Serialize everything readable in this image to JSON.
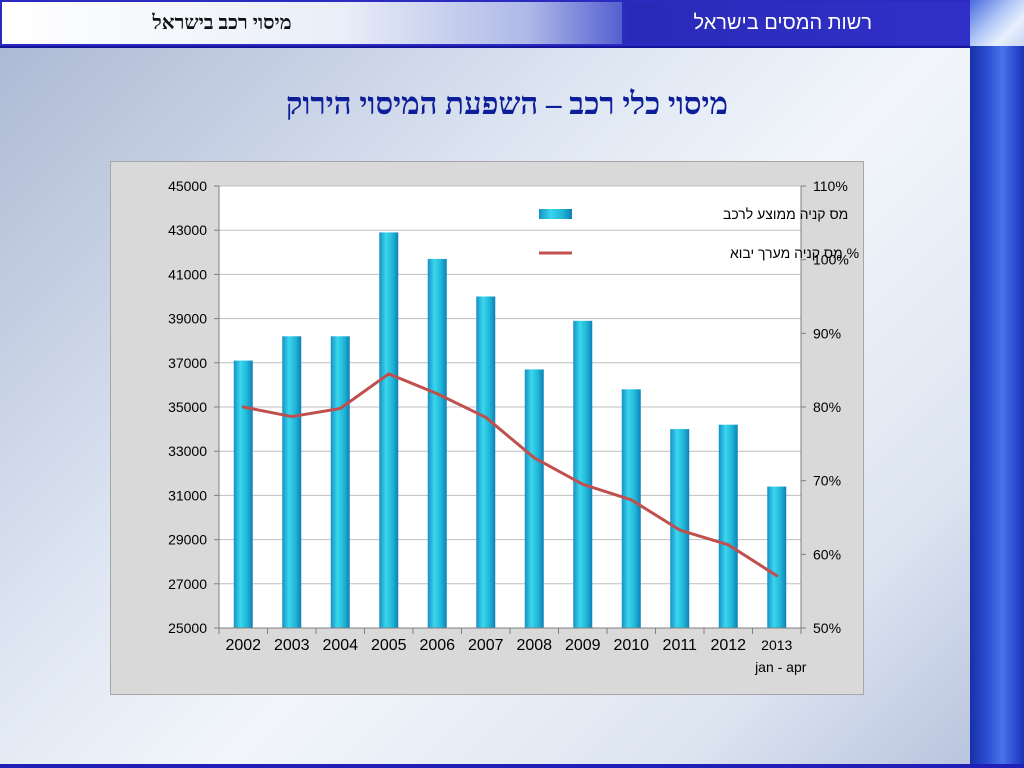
{
  "header": {
    "left_title": "מיסוי רכב בישראל",
    "right_title": "רשות המסים בישראל"
  },
  "slide": {
    "title": "מיסוי כלי רכב – השפעת המיסוי הירוק"
  },
  "colors": {
    "header_blue": "#2b2bc0",
    "title_blue": "#0d1e9a",
    "bar": "#1fb6d6",
    "line": "#c0504d",
    "plot_bg": "#ffffff",
    "chart_bg": "#d9d9d9"
  },
  "chart_data": {
    "type": "bar",
    "categories": [
      "2002",
      "2003",
      "2004",
      "2005",
      "2006",
      "2007",
      "2008",
      "2009",
      "2010",
      "2011",
      "2012",
      "2013"
    ],
    "category_sublabels": [
      "",
      "",
      "",
      "",
      "",
      "",
      "",
      "",
      "",
      "",
      "",
      "jan - apr"
    ],
    "series": [
      {
        "name": "מס קניה ממוצע לרכב",
        "type": "bar",
        "axis": "left",
        "values": [
          37100,
          38200,
          38200,
          42900,
          41700,
          40000,
          36700,
          38900,
          35800,
          34000,
          34200,
          31400
        ]
      },
      {
        "name": "% מס קניה מערך יבוא",
        "type": "line",
        "axis": "right",
        "values": [
          80,
          78.7,
          79.8,
          84.5,
          81.8,
          78.6,
          73.1,
          69.5,
          67.4,
          63.3,
          61.3,
          57.1
        ]
      }
    ],
    "ylim": [
      25000,
      45000
    ],
    "yticks": [
      "45000",
      "43000",
      "41000",
      "39000",
      "37000",
      "35000",
      "33000",
      "31000",
      "29000",
      "27000",
      "25000"
    ],
    "y2lim": [
      50,
      110
    ],
    "y2ticks": [
      "110%",
      "100%",
      "90%",
      "80%",
      "70%",
      "60%",
      "50%"
    ],
    "legend_position": "top-right",
    "grid": true
  }
}
